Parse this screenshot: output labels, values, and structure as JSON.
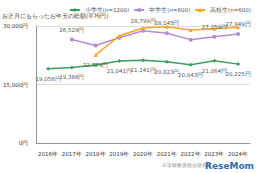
{
  "chart_data": {
    "type": "line",
    "y_label": "お正月にもらったお年玉の総額(平均円)",
    "categories": [
      "2016年",
      "2017年",
      "2018年",
      "2019年",
      "2020年",
      "2021年",
      "2022年",
      "2023年",
      "2024年"
    ],
    "series": [
      {
        "name": "小学生(n=1200)",
        "color": "#3a9e5c",
        "marker": "diamond",
        "values": [
          19056,
          19386,
          20000,
          21041,
          21241,
          20823,
          20043,
          21064,
          20225
        ],
        "value_labels": [
          "19,056円",
          "19,386円",
          null,
          "21,041円",
          "21,241円",
          "20,823円",
          "20,043円",
          "21,064円",
          "20,225円"
        ]
      },
      {
        "name": "中学生(n=600)",
        "color": "#b889d6",
        "marker": "circle",
        "values": [
          null,
          26529,
          25000,
          27000,
          28799,
          28145,
          26500,
          27259,
          27949
        ],
        "value_labels": [
          null,
          "26,529円",
          null,
          null,
          "28,799円",
          "28,145円",
          null,
          "27,259円",
          "27,949円"
        ]
      },
      {
        "name": "高校生(n=600)",
        "color": "#f5a623",
        "marker": "triangle",
        "values": [
          null,
          null,
          22579,
          27500,
          29500,
          29800,
          29000,
          29300,
          29700
        ],
        "value_labels": [
          null,
          null,
          "22,579円",
          null,
          null,
          null,
          null,
          null,
          null
        ]
      }
    ],
    "ylim": [
      0,
      30000
    ],
    "yticks": [
      {
        "value": 0,
        "label": "0円"
      },
      {
        "value": 15000,
        "label": "15,000円"
      },
      {
        "value": 30000,
        "label": "30,000円"
      }
    ],
    "grid": true,
    "legend": "top-right",
    "data_labels": true,
    "annotations": [
      "©学研教育総合研究所",
      "ReseMom"
    ]
  }
}
